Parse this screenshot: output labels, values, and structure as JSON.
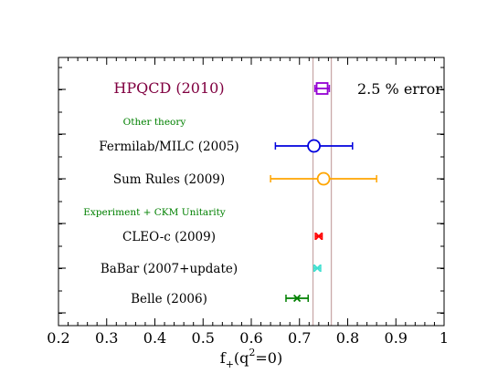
{
  "chart_data": {
    "type": "scatter",
    "xlabel": "f",
    "xlabel_sub": "+",
    "xlabel_rest_open": "(q",
    "xlabel_sup": "2",
    "xlabel_rest_close": "=0)",
    "xlim": [
      0.2,
      1.0
    ],
    "xticks": [
      "0.2",
      "0.3",
      "0.4",
      "0.5",
      "0.6",
      "0.7",
      "0.8",
      "0.9",
      "1"
    ],
    "xtick_values": [
      0.2,
      0.3,
      0.4,
      0.5,
      0.6,
      0.7,
      0.8,
      0.9,
      1.0
    ],
    "band": {
      "low": 0.728,
      "high": 0.766,
      "color": "#c9a9a9"
    },
    "band_label": "2.5 % error",
    "section_labels": [
      {
        "text": "Other theory",
        "color": "#008000",
        "after_row": 0
      },
      {
        "text": "Experiment + CKM Unitarity",
        "color": "#008000",
        "after_row": 2
      }
    ],
    "points": [
      {
        "label": "HPQCD (2010)",
        "value": 0.747,
        "low": 0.732,
        "high": 0.762,
        "marker": "square",
        "color": "#9400d3",
        "label_color": "#800040"
      },
      {
        "label": "Fermilab/MILC (2005)",
        "value": 0.73,
        "low": 0.65,
        "high": 0.81,
        "marker": "circle",
        "color": "#0000dd",
        "label_color": "#000000"
      },
      {
        "label": "Sum Rules (2009)",
        "value": 0.75,
        "low": 0.64,
        "high": 0.86,
        "marker": "circle",
        "color": "#ffa500",
        "label_color": "#000000"
      },
      {
        "label": "CLEO-c (2009)",
        "value": 0.74,
        "low": 0.733,
        "high": 0.747,
        "marker": "x",
        "color": "#ff0000",
        "label_color": "#000000"
      },
      {
        "label": "BaBar (2007+update)",
        "value": 0.737,
        "low": 0.73,
        "high": 0.744,
        "marker": "x",
        "color": "#40e0d0",
        "label_color": "#000000"
      },
      {
        "label": "Belle (2006)",
        "value": 0.695,
        "low": 0.672,
        "high": 0.718,
        "marker": "x",
        "color": "#008000",
        "label_color": "#000000"
      }
    ]
  }
}
